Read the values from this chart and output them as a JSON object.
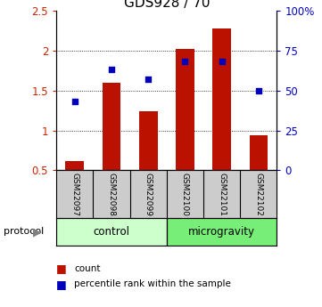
{
  "title": "GDS928 / 70",
  "samples": [
    "GSM22097",
    "GSM22098",
    "GSM22099",
    "GSM22100",
    "GSM22101",
    "GSM22102"
  ],
  "count_values": [
    0.62,
    1.6,
    1.24,
    2.02,
    2.28,
    0.94
  ],
  "percentile_values": [
    43,
    63,
    57,
    68,
    68,
    50
  ],
  "left_ylim": [
    0.5,
    2.5
  ],
  "right_ylim": [
    0,
    100
  ],
  "left_yticks": [
    0.5,
    1.0,
    1.5,
    2.0,
    2.5
  ],
  "right_yticks": [
    0,
    25,
    50,
    75,
    100
  ],
  "right_yticklabels": [
    "0",
    "25",
    "50",
    "75",
    "100%"
  ],
  "groups": [
    {
      "label": "control",
      "start": 0,
      "end": 3,
      "color": "#ccffcc"
    },
    {
      "label": "microgravity",
      "start": 3,
      "end": 6,
      "color": "#77ee77"
    }
  ],
  "bar_color": "#bb1100",
  "dot_color": "#0000bb",
  "bar_width": 0.5,
  "background_color": "#ffffff",
  "sample_bg_color": "#cccccc",
  "legend_count_color": "#bb1100",
  "legend_pct_color": "#0000bb",
  "protocol_label": "protocol",
  "title_fontsize": 11
}
